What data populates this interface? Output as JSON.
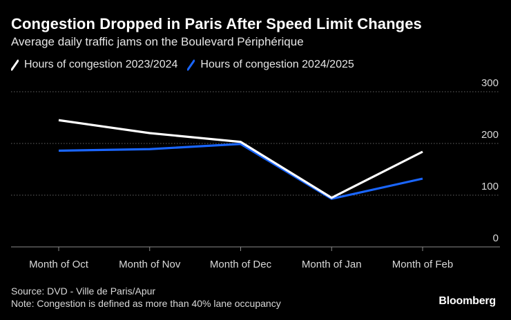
{
  "header": {
    "title": "Congestion Dropped in Paris After Speed Limit Changes",
    "subtitle": "Average daily traffic jams on the Boulevard Périphérique"
  },
  "footer": {
    "source": "Source: DVD - Ville de Paris/Apur",
    "note": "Note: Congestion is defined as more than 40% lane occupancy",
    "brand": "Bloomberg"
  },
  "colors": {
    "background": "#000000",
    "series_2023": "#ffffff",
    "series_2024": "#1a66ff",
    "grid": "#666666"
  },
  "chart_data": {
    "type": "line",
    "title": "Congestion Dropped in Paris After Speed Limit Changes",
    "subtitle": "Average daily traffic jams on the Boulevard Périphérique",
    "categories": [
      "Month of Oct",
      "Month of Nov",
      "Month of Dec",
      "Month of Jan",
      "Month of Feb"
    ],
    "series": [
      {
        "name": "Hours of congestion 2023/2024",
        "color": "#ffffff",
        "values": [
          245,
          220,
          203,
          95,
          184
        ]
      },
      {
        "name": "Hours of congestion 2024/2025",
        "color": "#1a66ff",
        "values": [
          186,
          189,
          199,
          93,
          132
        ]
      }
    ],
    "ylim": [
      0,
      300
    ],
    "yticks": [
      0,
      100,
      200,
      300
    ],
    "ytick_labels": [
      "0",
      "100",
      "200",
      "300"
    ],
    "xlabel": "",
    "ylabel": "",
    "grid": true,
    "legend": "top-left"
  }
}
